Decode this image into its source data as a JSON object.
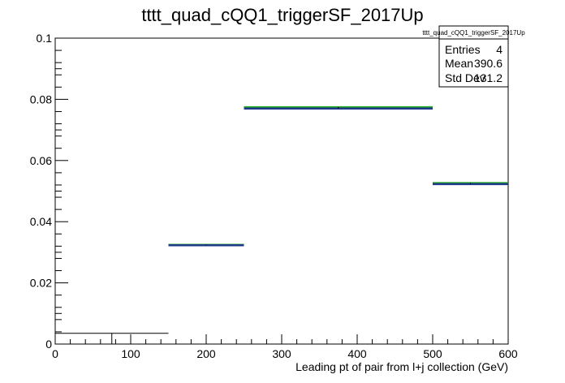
{
  "chart_data": {
    "type": "step",
    "title": "tttt_quad_cQQ1_triggerSF_2017Up",
    "xlabel": "Leading pt of pair from l+j collection (GeV)",
    "ylabel": "",
    "xlim": [
      0,
      600
    ],
    "ylim": [
      0,
      0.1
    ],
    "x_ticks": [
      0,
      100,
      200,
      300,
      400,
      500,
      600
    ],
    "x_tick_labels": [
      "0",
      "100",
      "200",
      "300",
      "400",
      "500",
      "600"
    ],
    "y_ticks": [
      0,
      0.02,
      0.04,
      0.06,
      0.08,
      0.1
    ],
    "y_tick_labels": [
      "0",
      "0.02",
      "0.04",
      "0.06",
      "0.08",
      "0.1"
    ],
    "grid": false,
    "bins": [
      {
        "low": 0,
        "high": 150,
        "value": 0.0035,
        "error_value": null
      },
      {
        "low": 150,
        "high": 250,
        "value": 0.0323,
        "error_value": 0.0325
      },
      {
        "low": 250,
        "high": 500,
        "value": 0.077,
        "error_value": 0.0775
      },
      {
        "low": 500,
        "high": 600,
        "value": 0.0523,
        "error_value": 0.0527
      }
    ],
    "series_colors": {
      "black_line": "#000000",
      "blue_line": "#1f3a8a",
      "green_line": "#22aa22"
    },
    "stats_box": {
      "name": "tttt_quad_cQQ1_triggerSF_2017Up",
      "rows": [
        {
          "label": "Entries",
          "value": "4"
        },
        {
          "label": "Mean",
          "value": "390.6"
        },
        {
          "label": "Std Dev",
          "value": "131.2"
        }
      ]
    }
  }
}
